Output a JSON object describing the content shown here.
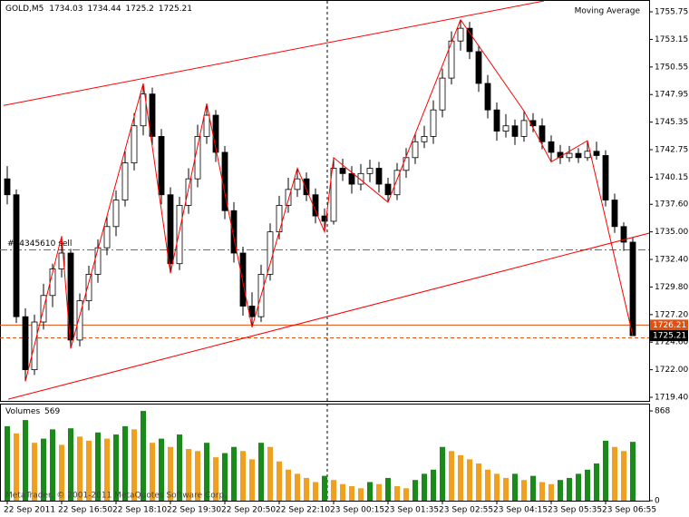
{
  "chart_data": {
    "type": "candlestick",
    "symbol": "GOLD,M5",
    "indicator": "Moving Average",
    "copyright": "MetaTrader, © 2001-2011 MetaQuotes Software Corp.",
    "volume_title": "Volumes",
    "categories": [
      "22 Sep 2011",
      null,
      null,
      null,
      null,
      null,
      "22 Sep 16:50",
      null,
      null,
      null,
      null,
      null,
      "22 Sep 18:10",
      null,
      null,
      null,
      null,
      null,
      "22 Sep 19:30",
      null,
      null,
      null,
      null,
      null,
      "22 Sep 20:50",
      null,
      null,
      null,
      null,
      null,
      "22 Sep 22:10",
      null,
      null,
      null,
      null,
      null,
      "23 Sep 00:15",
      null,
      null,
      null,
      null,
      null,
      "23 Sep 01:35",
      null,
      null,
      null,
      null,
      null,
      "23 Sep 02:55",
      null,
      null,
      null,
      null,
      null,
      "23 Sep 04:15",
      null,
      null,
      null,
      null,
      null,
      "23 Sep 05:35",
      null,
      null,
      null,
      null,
      null,
      "23 Sep 06:55",
      null,
      null,
      null
    ],
    "candles": [
      [
        1740.0,
        1741.2,
        1737.6,
        1738.5
      ],
      [
        1738.5,
        1739.0,
        1726.4,
        1727.0
      ],
      [
        1727.0,
        1727.8,
        1720.9,
        1722.0
      ],
      [
        1722.0,
        1727.2,
        1721.5,
        1726.5
      ],
      [
        1726.5,
        1730.1,
        1725.8,
        1729.0
      ],
      [
        1729.0,
        1732.0,
        1727.9,
        1731.5
      ],
      [
        1731.5,
        1734.6,
        1730.7,
        1733.0
      ],
      [
        1733.0,
        1733.4,
        1724.0,
        1724.8
      ],
      [
        1724.8,
        1729.2,
        1724.2,
        1728.5
      ],
      [
        1728.5,
        1731.8,
        1727.6,
        1731.0
      ],
      [
        1731.0,
        1734.3,
        1730.2,
        1733.5
      ],
      [
        1733.5,
        1736.4,
        1732.8,
        1735.5
      ],
      [
        1735.5,
        1738.9,
        1734.6,
        1738.0
      ],
      [
        1738.0,
        1742.6,
        1737.4,
        1741.5
      ],
      [
        1741.5,
        1746.2,
        1740.8,
        1745.0
      ],
      [
        1745.0,
        1749.0,
        1744.1,
        1748.0
      ],
      [
        1748.0,
        1748.6,
        1743.2,
        1744.0
      ],
      [
        1744.0,
        1744.7,
        1737.6,
        1738.5
      ],
      [
        1738.5,
        1739.2,
        1731.1,
        1732.0
      ],
      [
        1732.0,
        1738.3,
        1731.4,
        1737.5
      ],
      [
        1737.5,
        1741.0,
        1736.7,
        1740.0
      ],
      [
        1740.0,
        1745.1,
        1739.2,
        1744.0
      ],
      [
        1744.0,
        1747.1,
        1743.3,
        1746.0
      ],
      [
        1746.0,
        1746.5,
        1741.6,
        1742.5
      ],
      [
        1742.5,
        1743.1,
        1736.2,
        1737.0
      ],
      [
        1737.0,
        1737.8,
        1732.1,
        1733.0
      ],
      [
        1733.0,
        1733.6,
        1727.1,
        1728.0
      ],
      [
        1728.0,
        1729.3,
        1726.0,
        1727.0
      ],
      [
        1727.0,
        1731.9,
        1726.5,
        1731.0
      ],
      [
        1731.0,
        1735.8,
        1730.4,
        1735.0
      ],
      [
        1735.0,
        1738.4,
        1734.3,
        1737.5
      ],
      [
        1737.5,
        1740.1,
        1736.8,
        1739.0
      ],
      [
        1739.0,
        1741.0,
        1738.3,
        1740.0
      ],
      [
        1740.0,
        1740.6,
        1737.9,
        1738.5
      ],
      [
        1738.5,
        1739.1,
        1735.8,
        1736.5
      ],
      [
        1736.5,
        1737.2,
        1735.0,
        1736.0
      ],
      [
        1736.0,
        1742.0,
        1735.7,
        1741.0
      ],
      [
        1741.0,
        1741.9,
        1739.8,
        1740.5
      ],
      [
        1740.5,
        1741.2,
        1738.6,
        1739.5
      ],
      [
        1739.5,
        1741.4,
        1738.9,
        1740.5
      ],
      [
        1740.5,
        1741.8,
        1739.7,
        1741.0
      ],
      [
        1741.0,
        1741.6,
        1738.7,
        1739.5
      ],
      [
        1739.5,
        1740.1,
        1737.8,
        1738.5
      ],
      [
        1738.5,
        1741.5,
        1738.0,
        1740.8
      ],
      [
        1740.8,
        1742.9,
        1740.1,
        1742.0
      ],
      [
        1742.0,
        1744.3,
        1741.4,
        1743.5
      ],
      [
        1743.5,
        1745.0,
        1742.9,
        1744.0
      ],
      [
        1744.0,
        1747.4,
        1743.3,
        1746.5
      ],
      [
        1746.5,
        1750.4,
        1745.8,
        1749.5
      ],
      [
        1749.5,
        1753.9,
        1748.9,
        1753.0
      ],
      [
        1753.0,
        1755.0,
        1752.1,
        1754.2
      ],
      [
        1754.2,
        1754.8,
        1751.3,
        1752.0
      ],
      [
        1752.0,
        1752.6,
        1748.2,
        1749.0
      ],
      [
        1749.0,
        1749.8,
        1745.7,
        1746.5
      ],
      [
        1746.5,
        1747.2,
        1743.6,
        1744.5
      ],
      [
        1744.5,
        1746.1,
        1743.9,
        1745.0
      ],
      [
        1745.0,
        1745.6,
        1743.2,
        1744.0
      ],
      [
        1744.0,
        1746.4,
        1743.5,
        1745.5
      ],
      [
        1745.5,
        1746.2,
        1744.4,
        1745.0
      ],
      [
        1745.0,
        1745.7,
        1742.8,
        1743.5
      ],
      [
        1743.5,
        1744.1,
        1741.6,
        1742.5
      ],
      [
        1742.5,
        1743.2,
        1741.4,
        1742.0
      ],
      [
        1742.0,
        1743.1,
        1741.6,
        1742.4
      ],
      [
        1742.4,
        1742.9,
        1741.5,
        1742.0
      ],
      [
        1742.0,
        1743.6,
        1741.7,
        1742.6
      ],
      [
        1742.6,
        1743.5,
        1741.8,
        1742.2
      ],
      [
        1742.2,
        1742.7,
        1737.4,
        1738.0
      ],
      [
        1738.0,
        1738.6,
        1734.9,
        1735.5
      ],
      [
        1735.5,
        1735.9,
        1733.2,
        1734.03
      ],
      [
        1734.03,
        1734.44,
        1725.2,
        1725.21
      ]
    ],
    "volumes": [
      720,
      650,
      780,
      560,
      600,
      690,
      540,
      700,
      620,
      580,
      660,
      600,
      640,
      720,
      690,
      868,
      560,
      600,
      520,
      640,
      500,
      480,
      560,
      420,
      460,
      520,
      480,
      400,
      560,
      520,
      380,
      300,
      260,
      220,
      180,
      240,
      200,
      160,
      140,
      120,
      180,
      160,
      220,
      140,
      120,
      200,
      260,
      300,
      520,
      480,
      440,
      400,
      360,
      300,
      260,
      220,
      260,
      200,
      240,
      180,
      160,
      200,
      220,
      260,
      300,
      360,
      580,
      520,
      480,
      569
    ],
    "ylim": [
      1719.06,
      1756.78
    ],
    "yticks": [
      1755.75,
      1753.15,
      1750.55,
      1747.95,
      1745.35,
      1742.75,
      1740.15,
      {
        "value": 1737.6,
        "label": "1737.60"
      },
      {
        "value": 1735.0,
        "label": "1735.00"
      },
      {
        "value": 1732.4,
        "label": "1732.40"
      },
      {
        "value": 1729.8,
        "label": "1729.80"
      },
      {
        "value": 1727.2,
        "label": "1727.20"
      },
      {
        "value": 1724.6,
        "label": "1724.60"
      },
      {
        "value": 1722.0,
        "label": "1722.00"
      },
      {
        "value": 1719.4,
        "label": "1719.40"
      }
    ],
    "y2lim": [
      0,
      930
    ],
    "y2ticks": [
      868,
      0
    ],
    "up_volume_color": "#1a8a1a",
    "down_volume_color": "#f0a020",
    "line_color": "#ff0000",
    "trendlines": [
      {
        "points": [
          [
            -0.4,
            1746.92
          ],
          [
            59.2,
            1756.78
          ]
        ]
      },
      {
        "points": [
          [
            0.1,
            1719.22
          ],
          [
            75.6,
            1735.94
          ]
        ]
      }
    ],
    "zigzag": [
      [
        2,
        1720.9
      ],
      [
        6,
        1734.6
      ],
      [
        7,
        1724.0
      ],
      [
        15,
        1749.0
      ],
      [
        18,
        1731.1
      ],
      [
        22,
        1747.1
      ],
      [
        27,
        1726.0
      ],
      [
        32,
        1741.0
      ],
      [
        35,
        1735.0
      ],
      [
        36,
        1742.0
      ],
      [
        42,
        1737.8
      ],
      [
        50,
        1755.0
      ],
      [
        57,
        1746.4
      ],
      [
        60,
        1741.6
      ],
      [
        64,
        1743.6
      ],
      [
        69,
        1725.2
      ]
    ],
    "separators": [
      35.3
    ],
    "levels": [
      {
        "value": 1733.3,
        "label": "#74345610 sell",
        "color": "#20a020",
        "dash": "8 3 2 3"
      },
      {
        "value": 1726.21,
        "color": "#e05010",
        "dash": "none"
      },
      {
        "value": 1725.0,
        "color": "#e05010",
        "dash": "4 3"
      }
    ]
  }
}
